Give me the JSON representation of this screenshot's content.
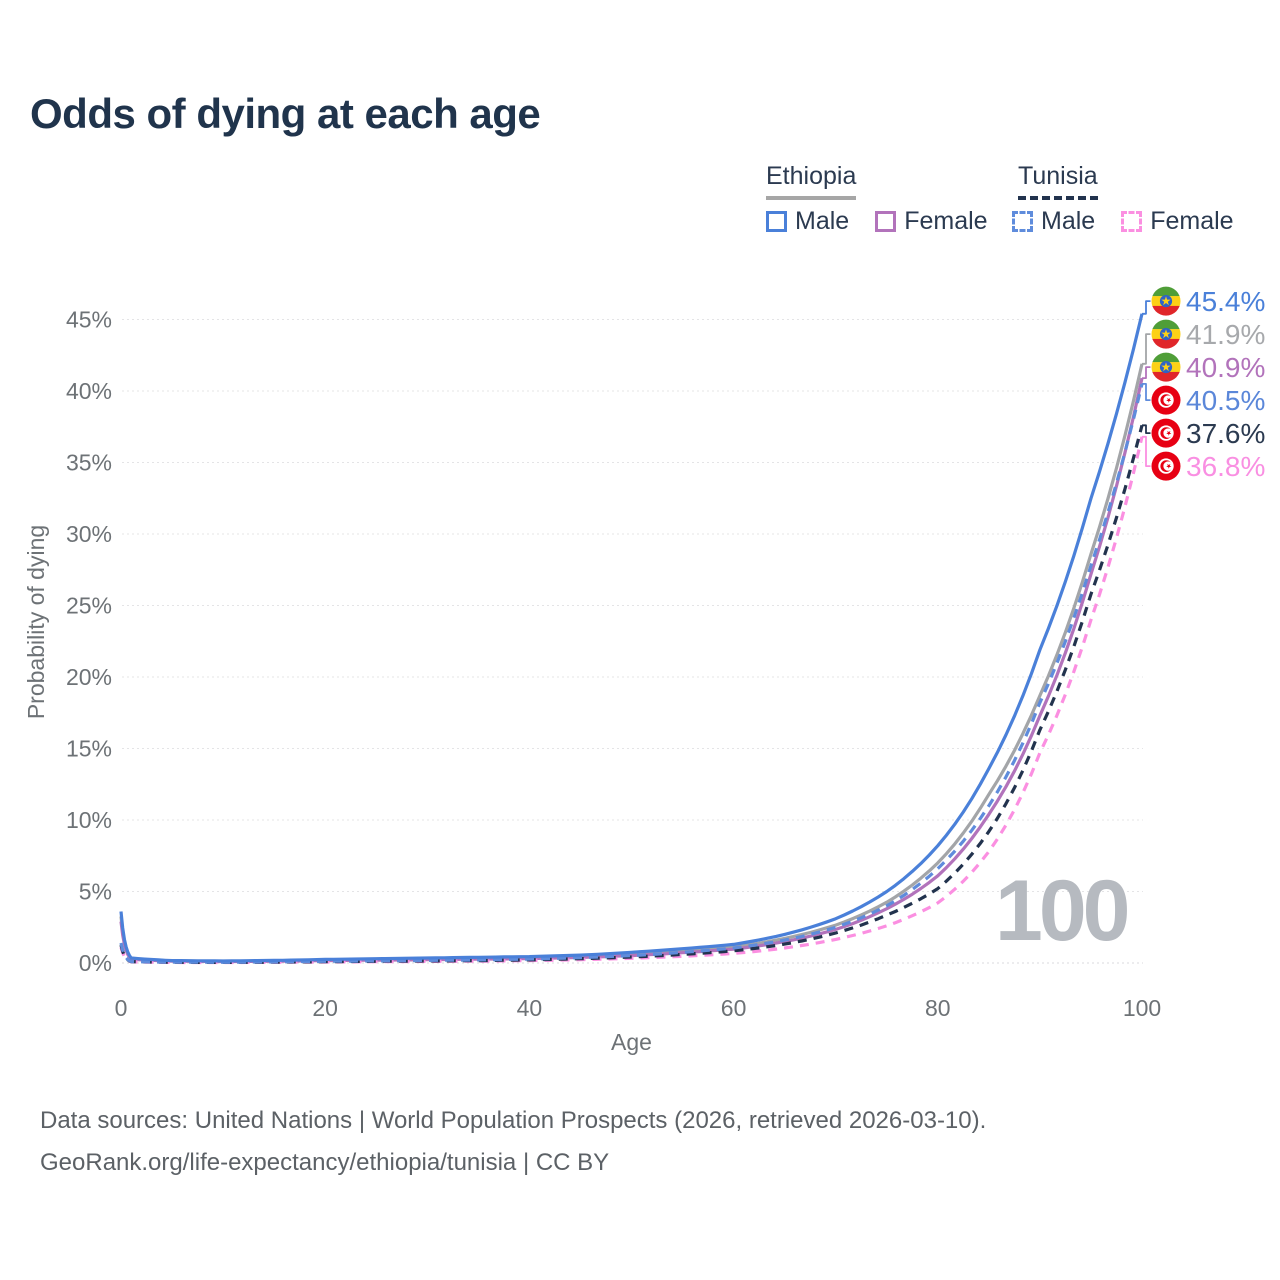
{
  "title": "Odds of dying at each age",
  "watermark": "100",
  "legend": {
    "groups": [
      {
        "label": "Ethiopia",
        "line_style": "solid",
        "underline_color": "#a6a6a6",
        "items": [
          {
            "label": "Male",
            "series": 0
          },
          {
            "label": "Female",
            "series": 2
          }
        ]
      },
      {
        "label": "Tunisia",
        "line_style": "dashed",
        "underline_color": "#22334e",
        "items": [
          {
            "label": "Male",
            "series": 3
          },
          {
            "label": "Female",
            "series": 5
          }
        ]
      }
    ]
  },
  "footer": {
    "line1": "Data sources: United Nations | World Population Prospects (2026, retrieved 2026-03-10).",
    "line2": "GeoRank.org/life-expectancy/ethiopia/tunisia | CC BY"
  },
  "chart_data": {
    "type": "line",
    "title": "Odds of dying at each age",
    "xlabel": "Age",
    "ylabel": "Probability of dying",
    "xlim": [
      0,
      100
    ],
    "ylim": [
      0,
      46.5
    ],
    "grid": "horizontal-dotted",
    "legend_position": "top-right",
    "x_ticks": [
      0,
      20,
      40,
      60,
      80,
      100
    ],
    "y_ticks": [
      {
        "value": 0,
        "label": "0%"
      },
      {
        "value": 5,
        "label": "5%"
      },
      {
        "value": 10,
        "label": "10%"
      },
      {
        "value": 15,
        "label": "15%"
      },
      {
        "value": 20,
        "label": "20%"
      },
      {
        "value": 25,
        "label": "25%"
      },
      {
        "value": 30,
        "label": "30%"
      },
      {
        "value": 35,
        "label": "35%"
      },
      {
        "value": 40,
        "label": "40%"
      },
      {
        "value": 45,
        "label": "45%"
      }
    ],
    "x": [
      0,
      1,
      5,
      10,
      15,
      20,
      25,
      30,
      35,
      40,
      45,
      50,
      55,
      60,
      65,
      70,
      75,
      80,
      85,
      90,
      95,
      100
    ],
    "series": [
      {
        "id": "ethiopia-male",
        "name": "Ethiopia Male",
        "color": "#4a80d9",
        "line_style": "solid",
        "flag": "ethiopia",
        "end_label": "45.4%",
        "label_color": "#4a80d9",
        "values": [
          3.6,
          0.35,
          0.17,
          0.14,
          0.18,
          0.25,
          0.3,
          0.35,
          0.4,
          0.45,
          0.55,
          0.75,
          1.0,
          1.3,
          2.0,
          3.1,
          5.0,
          8.2,
          13.6,
          21.9,
          32.5,
          45.4
        ]
      },
      {
        "id": "ethiopia",
        "name": "Ethiopia (both sexes)",
        "color": "#a3a5a8",
        "line_style": "solid",
        "flag": "ethiopia",
        "end_label": "41.9%",
        "label_color": "#a7a9ac",
        "values": [
          3.25,
          0.31,
          0.15,
          0.12,
          0.15,
          0.21,
          0.25,
          0.29,
          0.33,
          0.38,
          0.46,
          0.62,
          0.85,
          1.12,
          1.72,
          2.65,
          4.25,
          7.0,
          11.8,
          18.7,
          28.6,
          41.9
        ]
      },
      {
        "id": "ethiopia-female",
        "name": "Ethiopia Female",
        "color": "#b273bb",
        "line_style": "solid",
        "flag": "ethiopia",
        "end_label": "40.9%",
        "label_color": "#b273bb",
        "values": [
          2.9,
          0.27,
          0.13,
          0.1,
          0.12,
          0.17,
          0.2,
          0.23,
          0.27,
          0.31,
          0.39,
          0.52,
          0.72,
          0.97,
          1.5,
          2.35,
          3.8,
          6.1,
          10.4,
          17.3,
          27.2,
          40.9
        ]
      },
      {
        "id": "tunisia-male",
        "name": "Tunisia Male",
        "color": "#5f8cdc",
        "line_style": "dashed",
        "flag": "tunisia",
        "end_label": "40.5%",
        "label_color": "#5b87d9",
        "values": [
          1.4,
          0.1,
          0.06,
          0.05,
          0.08,
          0.12,
          0.15,
          0.18,
          0.22,
          0.28,
          0.38,
          0.52,
          0.75,
          1.05,
          1.6,
          2.5,
          4.0,
          6.6,
          11.0,
          18.2,
          27.8,
          40.5
        ]
      },
      {
        "id": "tunisia",
        "name": "Tunisia (both sexes)",
        "color": "#22334e",
        "line_style": "dashed",
        "flag": "tunisia",
        "end_label": "37.6%",
        "label_color": "#2b3a50",
        "values": [
          1.25,
          0.09,
          0.05,
          0.04,
          0.06,
          0.09,
          0.12,
          0.14,
          0.17,
          0.22,
          0.3,
          0.42,
          0.6,
          0.85,
          1.32,
          2.1,
          3.35,
          5.2,
          9.2,
          16.3,
          25.8,
          37.6
        ]
      },
      {
        "id": "tunisia-female",
        "name": "Tunisia Female",
        "color": "#fb8fe1",
        "line_style": "dashed",
        "flag": "tunisia",
        "end_label": "36.8%",
        "label_color": "#f98fe2",
        "values": [
          1.1,
          0.08,
          0.04,
          0.03,
          0.05,
          0.07,
          0.09,
          0.11,
          0.13,
          0.17,
          0.23,
          0.33,
          0.47,
          0.67,
          1.05,
          1.65,
          2.6,
          4.2,
          7.8,
          14.7,
          24.0,
          36.8
        ]
      }
    ]
  }
}
